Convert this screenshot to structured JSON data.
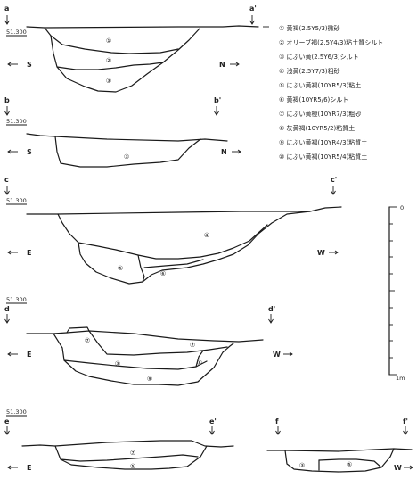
{
  "elevation_label": "51.300",
  "legend": [
    {
      "num": "①",
      "text": "黄褐(2.5Y5/3)微砂"
    },
    {
      "num": "②",
      "text": "オリーブ褐(2.5Y4/3)粘土質シルト"
    },
    {
      "num": "③",
      "text": "にぶい黄(2.5Y6/3)シルト"
    },
    {
      "num": "④",
      "text": "浅黄(2.5Y7/3)粗砂"
    },
    {
      "num": "⑤",
      "text": "にぶい黄褐(10YR5/3)粘土"
    },
    {
      "num": "⑥",
      "text": "黄褐(10YR5/6)シルト"
    },
    {
      "num": "⑦",
      "text": "にぶい黄橙(10YR7/3)粗砂"
    },
    {
      "num": "⑧",
      "text": "灰黄褐(10YR5/2)粘質土"
    },
    {
      "num": "⑨",
      "text": "にぶい黄褐(10YR4/3)粘質土"
    },
    {
      "num": "⑩",
      "text": "にぶい黄褐(10YR5/4)粘質土"
    }
  ],
  "scale": {
    "top": "0",
    "bottom": "1m"
  },
  "sections": [
    {
      "start": "a",
      "end": "a'",
      "left_dir": "S",
      "right_dir": "N",
      "layers": [
        "①",
        "②",
        "③"
      ]
    },
    {
      "start": "b",
      "end": "b'",
      "left_dir": "S",
      "right_dir": "N",
      "layers": [
        "③"
      ]
    },
    {
      "start": "c",
      "end": "c'",
      "left_dir": "E",
      "right_dir": "W",
      "layers": [
        "④",
        "⑤",
        "⑥"
      ]
    },
    {
      "start": "d",
      "end": "d'",
      "left_dir": "E",
      "right_dir": "W",
      "layers": [
        "⑦",
        "⑦",
        "③",
        "⑧",
        "⑨"
      ]
    },
    {
      "start": "e",
      "end": "e'",
      "left_dir": "E",
      "right_dir": "",
      "layers": [
        "⑦",
        "⑤"
      ]
    },
    {
      "start": "f",
      "end": "f'",
      "left_dir": "",
      "right_dir": "W",
      "layers": [
        "③",
        "⑤"
      ]
    }
  ]
}
